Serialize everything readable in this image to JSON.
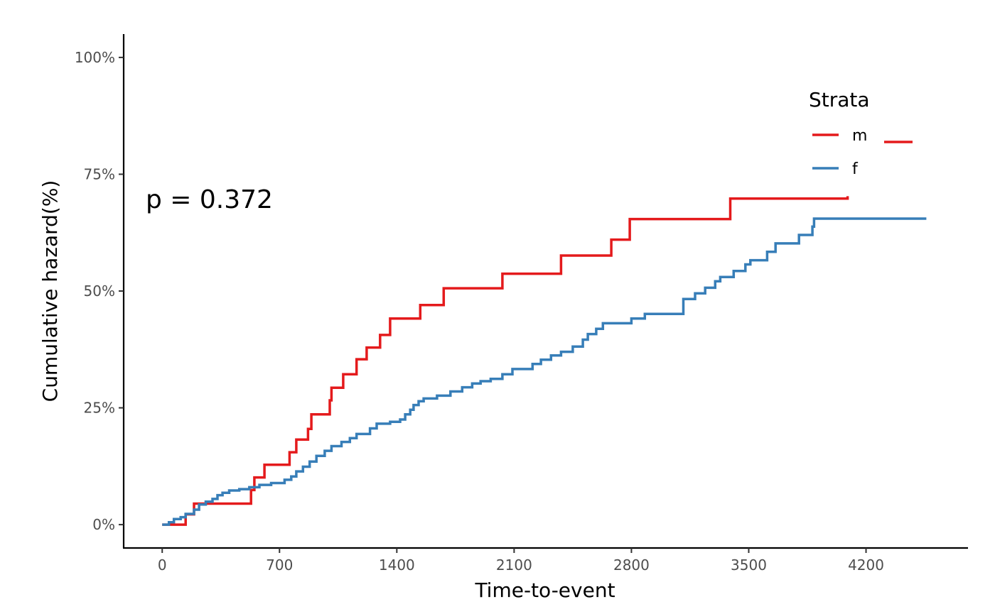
{
  "chart_data": {
    "type": "line",
    "step": true,
    "xlabel": "Time-to-event",
    "ylabel": "Cumulative hazard(%)",
    "xlim": [
      -230,
      4800
    ],
    "ylim": [
      -5,
      105
    ],
    "x_ticks": [
      0,
      700,
      1400,
      2100,
      2800,
      3500,
      4200
    ],
    "x_tick_labels": [
      "0",
      "700",
      "1400",
      "2100",
      "2800",
      "3500",
      "4200"
    ],
    "y_ticks": [
      0,
      25,
      50,
      75,
      100
    ],
    "y_tick_labels": [
      "0%",
      "25%",
      "50%",
      "75%",
      "100%"
    ],
    "grid": false,
    "legend": {
      "title": "Strata",
      "placement": "top-right",
      "entries": [
        {
          "label": "m",
          "color": "#e41a1c"
        },
        {
          "label": "f",
          "color": "#377eb8"
        }
      ]
    },
    "annotation": "p = 0.372",
    "series": [
      {
        "name": "m",
        "color": "#e41a1c",
        "points": [
          [
            0,
            0
          ],
          [
            140,
            2.2
          ],
          [
            190,
            4.5
          ],
          [
            530,
            7.4
          ],
          [
            550,
            10.1
          ],
          [
            610,
            12.8
          ],
          [
            760,
            15.5
          ],
          [
            800,
            18.2
          ],
          [
            870,
            20.5
          ],
          [
            890,
            23.6
          ],
          [
            1000,
            26.6
          ],
          [
            1010,
            29.3
          ],
          [
            1080,
            32.2
          ],
          [
            1160,
            35.4
          ],
          [
            1220,
            37.9
          ],
          [
            1300,
            40.6
          ],
          [
            1360,
            44.1
          ],
          [
            1540,
            47.0
          ],
          [
            1680,
            50.6
          ],
          [
            2030,
            53.7
          ],
          [
            2380,
            57.6
          ],
          [
            2680,
            61.0
          ],
          [
            2790,
            65.4
          ],
          [
            3390,
            69.8
          ],
          [
            4090,
            70.3
          ]
        ]
      },
      {
        "name": "f",
        "color": "#377eb8",
        "points": [
          [
            0,
            0
          ],
          [
            40,
            0.5
          ],
          [
            70,
            1.2
          ],
          [
            110,
            1.6
          ],
          [
            140,
            2.3
          ],
          [
            190,
            3.2
          ],
          [
            220,
            4.3
          ],
          [
            260,
            4.9
          ],
          [
            300,
            5.5
          ],
          [
            330,
            6.3
          ],
          [
            360,
            6.8
          ],
          [
            400,
            7.3
          ],
          [
            460,
            7.6
          ],
          [
            520,
            8.0
          ],
          [
            580,
            8.5
          ],
          [
            650,
            8.9
          ],
          [
            730,
            9.6
          ],
          [
            770,
            10.3
          ],
          [
            800,
            11.4
          ],
          [
            840,
            12.4
          ],
          [
            880,
            13.5
          ],
          [
            920,
            14.7
          ],
          [
            970,
            15.8
          ],
          [
            1010,
            16.8
          ],
          [
            1070,
            17.7
          ],
          [
            1120,
            18.5
          ],
          [
            1160,
            19.4
          ],
          [
            1240,
            20.6
          ],
          [
            1280,
            21.6
          ],
          [
            1360,
            22.0
          ],
          [
            1420,
            22.5
          ],
          [
            1450,
            23.6
          ],
          [
            1480,
            24.6
          ],
          [
            1500,
            25.6
          ],
          [
            1530,
            26.4
          ],
          [
            1560,
            27.0
          ],
          [
            1640,
            27.6
          ],
          [
            1720,
            28.5
          ],
          [
            1790,
            29.4
          ],
          [
            1850,
            30.2
          ],
          [
            1900,
            30.7
          ],
          [
            1960,
            31.2
          ],
          [
            2030,
            32.2
          ],
          [
            2090,
            33.3
          ],
          [
            2210,
            34.4
          ],
          [
            2260,
            35.3
          ],
          [
            2320,
            36.2
          ],
          [
            2380,
            37.0
          ],
          [
            2450,
            38.1
          ],
          [
            2510,
            39.6
          ],
          [
            2540,
            40.8
          ],
          [
            2590,
            41.9
          ],
          [
            2630,
            43.1
          ],
          [
            2800,
            44.1
          ],
          [
            2880,
            45.1
          ],
          [
            3110,
            48.3
          ],
          [
            3180,
            49.5
          ],
          [
            3240,
            50.7
          ],
          [
            3300,
            52.1
          ],
          [
            3330,
            53.0
          ],
          [
            3410,
            54.3
          ],
          [
            3480,
            55.7
          ],
          [
            3510,
            56.6
          ],
          [
            3610,
            58.4
          ],
          [
            3660,
            60.2
          ],
          [
            3800,
            62.0
          ],
          [
            3880,
            63.8
          ],
          [
            3890,
            65.5
          ],
          [
            4560,
            65.5
          ]
        ]
      }
    ]
  }
}
